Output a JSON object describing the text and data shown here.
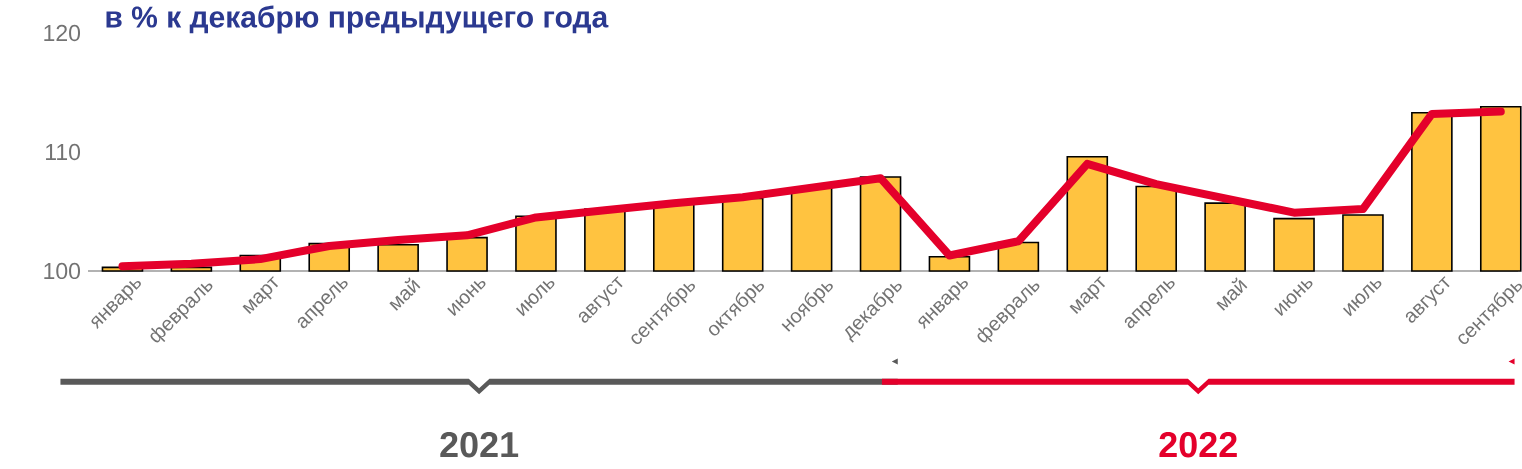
{
  "chart_data": {
    "type": "bar",
    "title": "в % к декабрю предыдущего года",
    "categories": [
      "январь",
      "февраль",
      "март",
      "апрель",
      "май",
      "июнь",
      "июль",
      "август",
      "сентябрь",
      "октябрь",
      "ноябрь",
      "декабрь",
      "январь",
      "февраль",
      "март",
      "апрель",
      "май",
      "июнь",
      "июль",
      "август",
      "сентябрь"
    ],
    "series": [
      {
        "color": "#ffc340",
        "values": [
          100.3,
          100.3,
          101.3,
          102.3,
          102.2,
          102.8,
          104.6,
          105.2,
          105.7,
          106.1,
          107.0,
          107.9,
          101.2,
          102.4,
          109.6,
          107.1,
          105.7,
          104.4,
          104.7,
          113.3,
          113.8
        ]
      },
      {
        "type": "line",
        "color": "#e4002b",
        "values": [
          100.4,
          100.6,
          101.0,
          102.1,
          102.6,
          103.0,
          104.5,
          105.1,
          105.7,
          106.2,
          107.0,
          107.8,
          101.3,
          102.5,
          109.0,
          107.3,
          106.1,
          104.9,
          105.2,
          113.2,
          113.4
        ]
      }
    ],
    "ylim": [
      100,
      120
    ],
    "yticks": [
      100,
      110,
      120
    ],
    "marker": "none",
    "line_style": "solid",
    "annotations": [
      "2021",
      "2022"
    ]
  }
}
